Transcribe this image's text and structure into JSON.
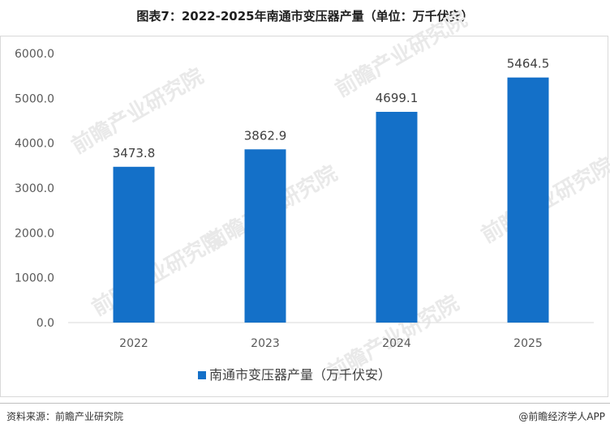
{
  "title": "图表7：2022-2025年南通市变压器产量（单位：万千伏安）",
  "chart_data": {
    "type": "bar",
    "categories": [
      "2022",
      "2023",
      "2024",
      "2025"
    ],
    "series": [
      {
        "name": "南通市变压器产量（万千伏安）",
        "values": [
          3473.8,
          3862.9,
          4699.1,
          5464.5
        ]
      }
    ],
    "value_labels": [
      "3473.8",
      "3862.9",
      "4699.1",
      "5464.5"
    ],
    "y_ticks": [
      "0.0",
      "1000.0",
      "2000.0",
      "3000.0",
      "4000.0",
      "5000.0",
      "6000.0"
    ],
    "ylim": [
      0,
      6000
    ],
    "grid": false,
    "legend_position": "bottom",
    "bar_color": "#1470c8"
  },
  "watermark": "前瞻产业研究院",
  "footer": {
    "source": "资料来源：前瞻产业研究院",
    "credit": "@前瞻经济学人APP"
  }
}
